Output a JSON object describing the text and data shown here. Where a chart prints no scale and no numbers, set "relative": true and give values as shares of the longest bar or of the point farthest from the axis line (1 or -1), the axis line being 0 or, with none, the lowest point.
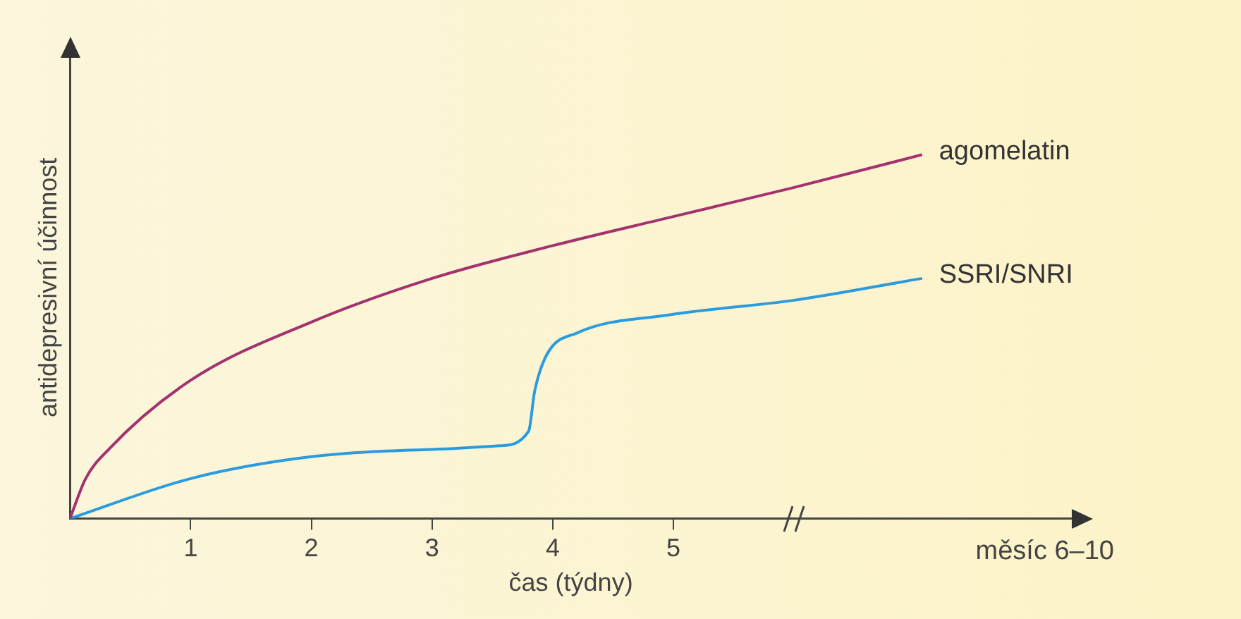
{
  "chart_data": {
    "type": "line",
    "relative": true,
    "xlabel": "čas (týdny)",
    "ylabel": "antidepresivní účinnost",
    "xlim": [
      0,
      8.3
    ],
    "xticks": [
      1,
      2,
      3,
      4,
      5
    ],
    "grid": false,
    "legend": false,
    "marker": "none",
    "line_style": "solid",
    "annotations": [
      "měsíc 6–10"
    ],
    "series": [
      {
        "name": "agomelatin",
        "color": "#a3326f",
        "x": [
          0,
          0.13,
          0.32,
          1,
          2,
          3,
          4,
          5,
          6,
          7.06
        ],
        "values": [
          0,
          0.11,
          0.19,
          0.38,
          0.54,
          0.66,
          0.75,
          0.83,
          0.91,
          1
        ]
      },
      {
        "name": "SSRI/SNRI",
        "color": "#2b9be0",
        "x": [
          0,
          1,
          2,
          3,
          3.56,
          3.8,
          3.85,
          3.95,
          4.2,
          4.97,
          6,
          7.06
        ],
        "values": [
          0,
          0.11,
          0.17,
          0.19,
          0.2,
          0.24,
          0.35,
          0.45,
          0.51,
          0.56,
          0.6,
          0.66
        ]
      }
    ]
  }
}
